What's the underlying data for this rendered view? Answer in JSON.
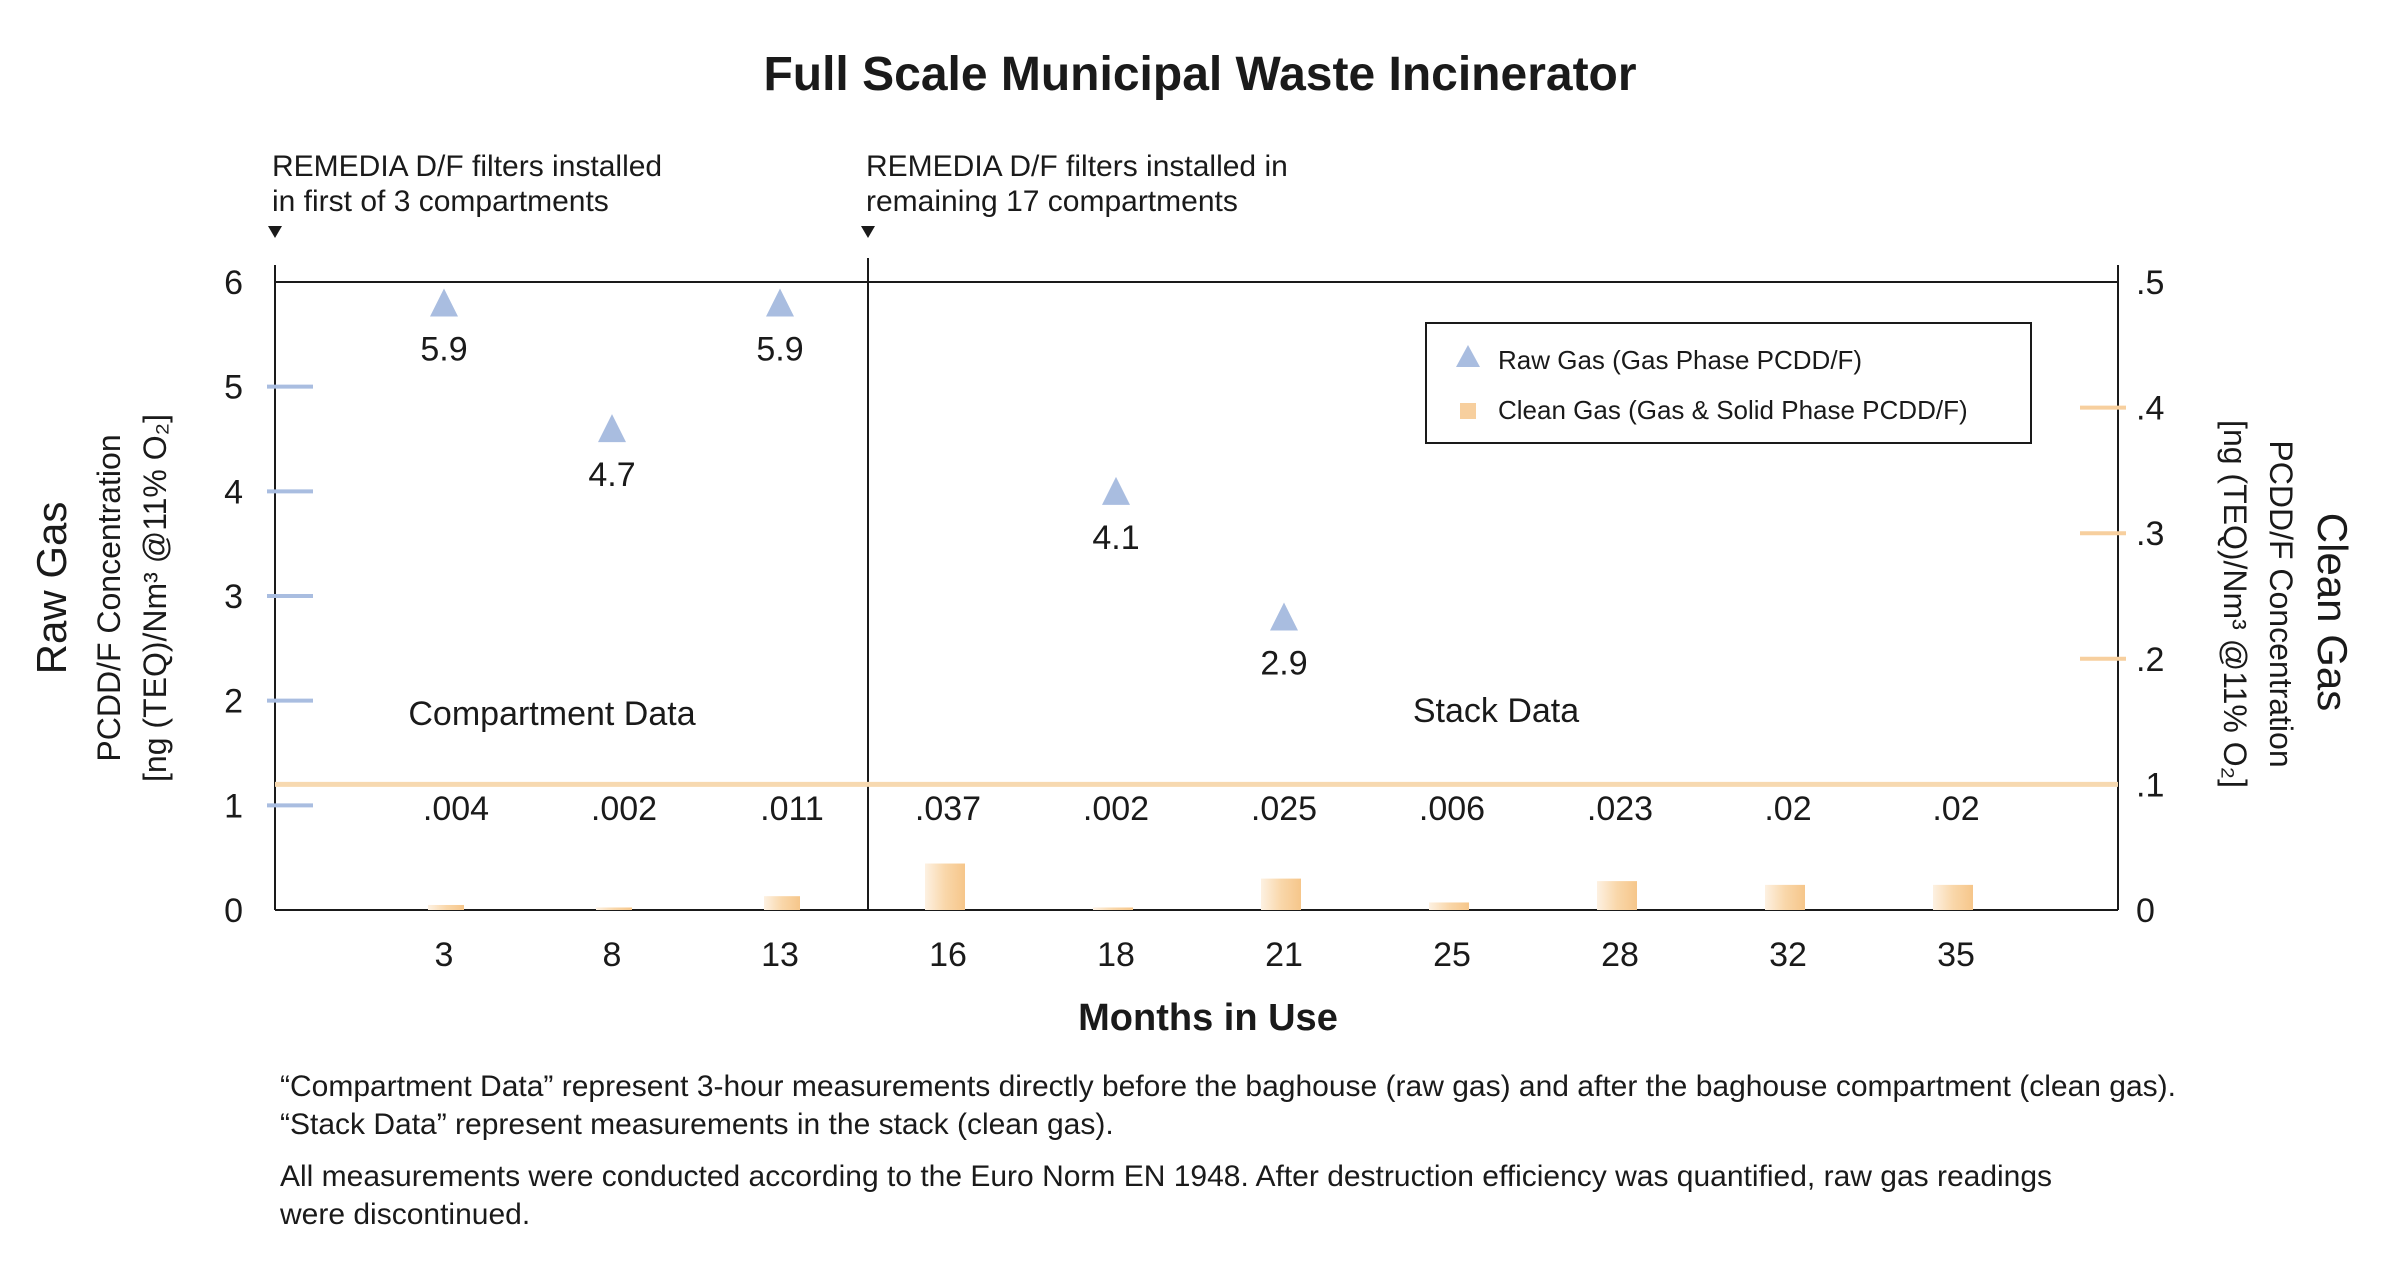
{
  "chart_data": {
    "type": "scatter+bar",
    "title": "Full Scale Municipal Waste Incinerator",
    "xlabel": "Months in Use",
    "categories": [
      "3",
      "8",
      "13",
      "16",
      "18",
      "21",
      "25",
      "28",
      "32",
      "35"
    ],
    "y_left": {
      "title": "Raw Gas",
      "label_line1": "PCDD/F Concentration",
      "label_line2": "[ng (TEQ)/Nm³ @11% O₂]",
      "range": [
        0,
        6
      ],
      "ticks": [
        "0",
        "1",
        "2",
        "3",
        "4",
        "5",
        "6"
      ]
    },
    "y_right": {
      "title": "Clean Gas",
      "label_line1": "PCDD/F Concentration",
      "label_line2": "[ng (TEQ)/Nm³ @11% O₂]",
      "range": [
        0,
        0.5
      ],
      "ticks": [
        "0",
        "0.1",
        "0.2",
        "0.3",
        "0.4",
        "0.5"
      ]
    },
    "series": [
      {
        "name": "Raw Gas (Gas Phase PCDD/F)",
        "marker": "triangle",
        "axis": "left",
        "color": "#a9bde0",
        "points": [
          {
            "x": "3",
            "y": 5.9,
            "label": "5.9"
          },
          {
            "x": "8",
            "y": 4.7,
            "label": "4.7"
          },
          {
            "x": "13",
            "y": 5.9,
            "label": "5.9"
          },
          {
            "x": "18",
            "y": 4.1,
            "label": "4.1"
          },
          {
            "x": "21",
            "y": 2.9,
            "label": "2.9"
          }
        ]
      },
      {
        "name": "Clean Gas (Gas & Solid Phase PCDD/F)",
        "marker": "bar",
        "axis": "right",
        "color": "#f7cf9e",
        "values": [
          0.004,
          0.002,
          0.011,
          0.037,
          0.002,
          0.025,
          0.006,
          0.023,
          0.02,
          0.02
        ],
        "labels": [
          ".004",
          ".002",
          ".011",
          ".037",
          ".002",
          ".025",
          ".006",
          ".023",
          ".02",
          ".02"
        ]
      }
    ],
    "reference_line": {
      "axis": "right",
      "value": 0.1,
      "color": "#f7d9b0"
    },
    "annotations": {
      "left_filter_line1": "REMEDIA D/F filters installed",
      "left_filter_line2": "in first of 3 compartments",
      "right_filter_line1": "REMEDIA D/F filters installed in",
      "right_filter_line2": "remaining 17 compartments",
      "compartment_label": "Compartment Data",
      "stack_label": "Stack Data"
    },
    "legend_position": "top-right",
    "grid": false
  },
  "notes": {
    "line1": "“Compartment Data” represent 3-hour measurements directly before the baghouse (raw gas) and after the baghouse compartment (clean gas).",
    "line2": "“Stack Data” represent measurements in the stack (clean gas).",
    "line3": "All measurements were conducted according to the Euro Norm EN 1948. After destruction efficiency was quantified, raw gas readings",
    "line4": "were discontinued."
  },
  "colors": {
    "raw_gas": "#a9bde0",
    "clean_gas": "#f7cf9e",
    "axis": "#1a1a1a"
  }
}
